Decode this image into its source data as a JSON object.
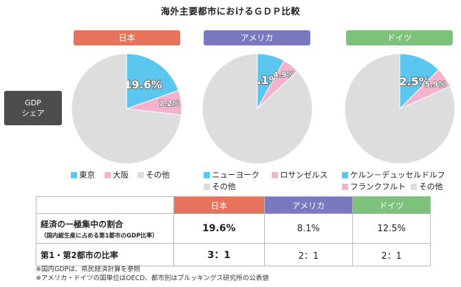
{
  "title": "海外主要都市におけるＧＤＰ比較",
  "row_header": [
    "GDP",
    "シェア"
  ],
  "colors": {
    "japan": "#e8735c",
    "usa": "#7a78c0",
    "germany": "#7cc27a",
    "first_city": "#5bc7ee",
    "second_city": "#f3b3cf",
    "other": "#dddddd",
    "label_box": "#4d4d4d"
  },
  "chart_data": [
    {
      "type": "pie",
      "title": "日本",
      "labels": [
        "東京",
        "大阪",
        "その他"
      ],
      "values": [
        19.6,
        7.2,
        73.2
      ],
      "value_labels": [
        "19.6%",
        "7.2%",
        ""
      ]
    },
    {
      "type": "pie",
      "title": "アメリカ",
      "labels": [
        "ニューヨーク",
        "ロサンゼルス",
        "その他"
      ],
      "values": [
        8.1,
        4.9,
        87.0
      ],
      "value_labels": [
        "8.1%",
        "4.9%",
        ""
      ]
    },
    {
      "type": "pie",
      "title": "ドイツ",
      "labels": [
        "ケルン－デュッセルドルフ",
        "フランクフルト",
        "その他"
      ],
      "values": [
        12.5,
        5.9,
        81.6
      ],
      "value_labels": [
        "12.5%",
        "5.9%",
        ""
      ]
    }
  ],
  "table": {
    "headers": [
      "日本",
      "アメリカ",
      "ドイツ"
    ],
    "rows": [
      {
        "label": "経済の一極集中の割合",
        "sublabel": "（国内総生産に占める第1都市のGDP比率）",
        "values": [
          "19.6%",
          "8.1%",
          "12.5%"
        ]
      },
      {
        "label": "第1・第2都市の比率",
        "sublabel": "",
        "values": [
          "3：1",
          "2：1",
          "2：1"
        ]
      }
    ]
  },
  "notes": [
    "※国内GDPは、県民経済計算を参照",
    "※アメリカ・ドイツの国単位はOECD、都市別はブルッキングス研究所の公表値"
  ]
}
